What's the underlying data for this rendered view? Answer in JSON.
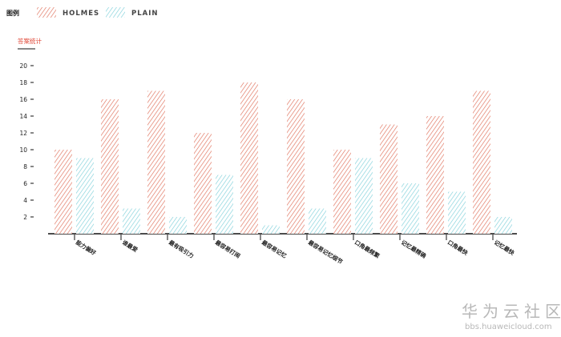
{
  "legend": {
    "title": "图例"
  },
  "section_title": "答案统计",
  "watermark": {
    "cn": "华为云社区",
    "url": "bbs.huaweicloud.com"
  },
  "colors": {
    "holmes": "#e0705a",
    "plain": "#7fd0da",
    "axis": "#111111"
  },
  "chart_data": {
    "type": "bar",
    "title": "",
    "xlabel": "",
    "ylabel": "",
    "ylim": [
      0,
      21
    ],
    "yticks": [
      2,
      4,
      6,
      8,
      10,
      12,
      14,
      16,
      18,
      20
    ],
    "grid": false,
    "legend_position": "top-left",
    "categories": [
      "能力偏好",
      "谁最爱",
      "最有吸引力",
      "最容易打闹",
      "最容易记忆",
      "最容易记忆细节",
      "口角最频繁",
      "记忆最精确",
      "口角最快",
      "记忆最快"
    ],
    "series": [
      {
        "name": "HOLMES",
        "values": [
          10,
          16,
          17,
          12,
          18,
          16,
          10,
          13,
          14,
          17
        ]
      },
      {
        "name": "PLAIN",
        "values": [
          9,
          3,
          2,
          7,
          1,
          3,
          9,
          6,
          5,
          2
        ]
      }
    ]
  }
}
